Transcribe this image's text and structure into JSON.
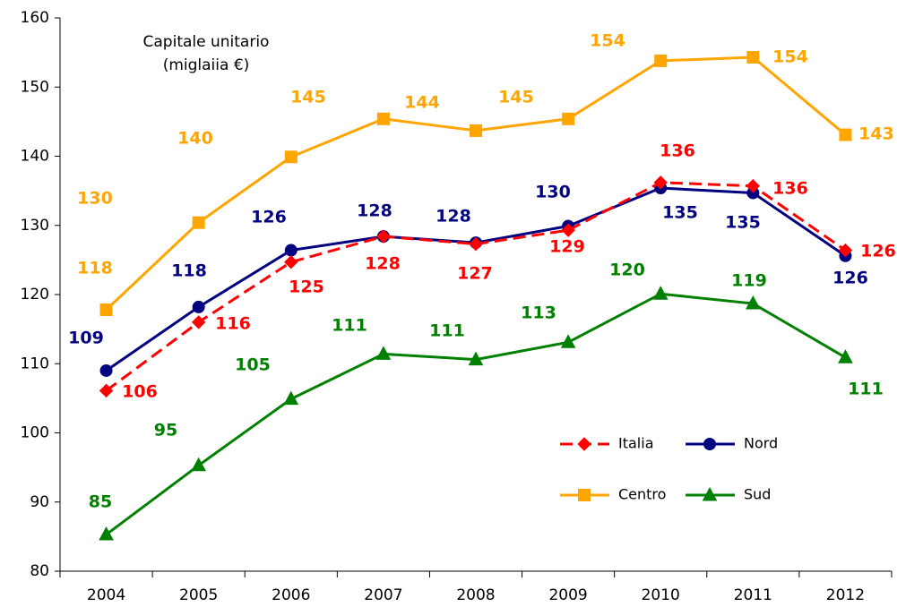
{
  "chart_data": {
    "type": "line",
    "annotation": [
      "Capitale unitario",
      "(miglaiia €)"
    ],
    "categories": [
      "2004",
      "2005",
      "2006",
      "2007",
      "2008",
      "2009",
      "2010",
      "2011",
      "2012"
    ],
    "series": [
      {
        "name": "Italia",
        "color": "#ff0000",
        "marker": "diamond",
        "dashed": true,
        "values": [
          106.1,
          116.0,
          124.7,
          128.4,
          127.3,
          129.3,
          136.2,
          135.7,
          126.4
        ],
        "value_labels": [
          "106",
          "116",
          "125",
          "128",
          "127",
          "129",
          "136",
          "136",
          "126"
        ]
      },
      {
        "name": "Nord",
        "color": "#000080",
        "marker": "circle",
        "dashed": false,
        "values": [
          109.0,
          118.2,
          126.4,
          128.4,
          127.5,
          129.9,
          135.4,
          134.7,
          125.6
        ],
        "value_labels": [
          "109",
          "118",
          "126",
          "128",
          "128",
          "130",
          "135",
          "135",
          "126"
        ]
      },
      {
        "name": "Centro",
        "color": "#ffa500",
        "marker": "square",
        "dashed": false,
        "values": [
          117.8,
          130.4,
          139.9,
          145.4,
          143.7,
          145.4,
          153.8,
          154.3,
          143.1
        ],
        "value_labels": [
          "118",
          "130",
          "140",
          "145",
          "144",
          "145",
          "154",
          "154",
          "143"
        ]
      },
      {
        "name": "Sud",
        "color": "#008000",
        "marker": "triangle",
        "dashed": false,
        "values": [
          85.3,
          95.3,
          104.9,
          111.4,
          110.6,
          113.1,
          120.1,
          118.7,
          110.9
        ],
        "value_labels": [
          "85",
          "95",
          "105",
          "111",
          "111",
          "113",
          "120",
          "119",
          "111"
        ]
      }
    ],
    "ylim": [
      80,
      160
    ],
    "yticks": [
      80,
      90,
      100,
      110,
      120,
      130,
      140,
      150,
      160
    ],
    "grid": false,
    "legend": "lower right"
  }
}
